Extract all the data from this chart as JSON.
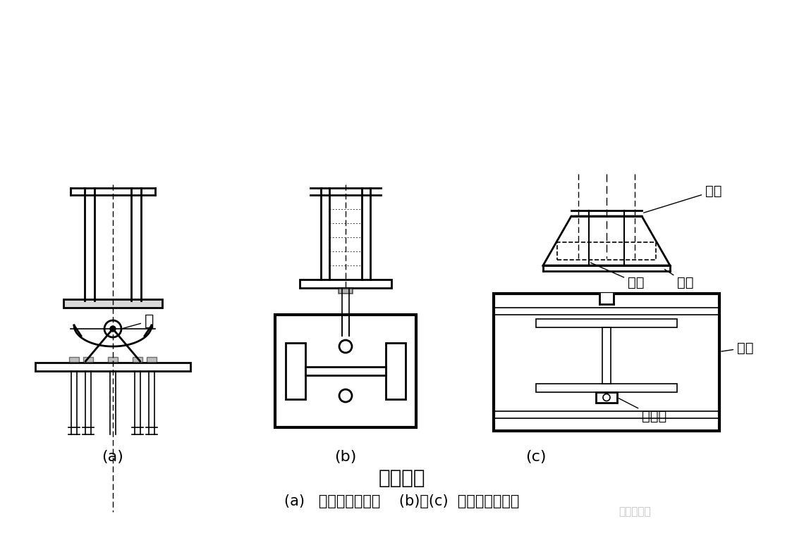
{
  "title": "柱脚型式",
  "subtitle_a": "(a)   轴承式铰接柱脚",
  "subtitle_bc": "(b)、(c)  平板式铰接柱脚",
  "label_a": "(a)",
  "label_b": "(b)",
  "label_c": "(c)",
  "label_zhou": "轴",
  "label_liang": "靴梁",
  "label_mao": "锚栓",
  "label_di": "底板",
  "label_ge": "隔板",
  "label_ling": "零件板",
  "bg_color": "#ffffff",
  "line_color": "#000000",
  "title_fontsize": 20,
  "label_fontsize": 16,
  "annot_fontsize": 14
}
